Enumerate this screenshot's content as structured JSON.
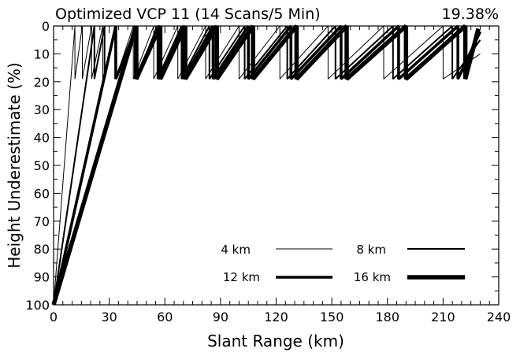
{
  "chart_data": {
    "type": "line",
    "title": "Optimized VCP 11 (14 Scans/5 Min)",
    "corner_label": "19.38%",
    "xlabel": "Slant Range (km)",
    "ylabel": "Height Underestimate (%)",
    "xlim": [
      0,
      240
    ],
    "ylim": [
      100,
      0
    ],
    "y_inverted": true,
    "xticks": [
      0,
      30,
      60,
      90,
      120,
      150,
      180,
      210,
      240
    ],
    "yticks": [
      0,
      10,
      20,
      30,
      40,
      50,
      60,
      70,
      80,
      90,
      100
    ],
    "grid": false,
    "legend_position": "bottom-right",
    "series": [
      {
        "name": "4 km",
        "x": [
          0,
          11.5,
          11.5,
          15.5,
          15.5,
          20.5,
          20.5,
          26.5,
          26.5,
          33.5,
          33.5,
          43,
          43,
          54,
          54,
          67,
          67,
          82,
          82,
          100,
          100,
          122,
          122,
          148,
          148,
          178,
          178,
          210,
          210,
          230
        ],
        "y": [
          100,
          0,
          19,
          0,
          19,
          0,
          19,
          0,
          19,
          0,
          19,
          0,
          19,
          0,
          19,
          0,
          19,
          0,
          19,
          0,
          19,
          0,
          19,
          0,
          19,
          0,
          19,
          0,
          19,
          10
        ]
      },
      {
        "name": "8 km",
        "x": [
          0,
          22,
          22,
          27.5,
          27.5,
          33.5,
          33.5,
          44.5,
          44.5,
          56,
          56,
          69,
          69,
          84,
          84,
          103,
          103,
          126,
          126,
          152,
          152,
          183,
          183,
          215,
          215,
          230
        ],
        "y": [
          100,
          0,
          19,
          0,
          19,
          0,
          19,
          0,
          19,
          0,
          19,
          0,
          19,
          0,
          19,
          0,
          19,
          0,
          19,
          0,
          19,
          0,
          19,
          0,
          19,
          5
        ]
      },
      {
        "name": "12 km",
        "x": [
          0,
          33.5,
          33.5,
          45,
          45,
          56.5,
          56.5,
          70,
          70,
          86,
          86,
          105,
          105,
          128,
          128,
          155,
          155,
          186,
          186,
          218,
          218,
          230
        ],
        "y": [
          100,
          0,
          19,
          0,
          19,
          0,
          19,
          0,
          19,
          0,
          19,
          0,
          19,
          0,
          19,
          0,
          19,
          0,
          19,
          0,
          19,
          2
        ]
      },
      {
        "name": "16 km",
        "x": [
          0,
          44.5,
          44.5,
          57.5,
          57.5,
          71,
          71,
          88,
          88,
          107.5,
          107.5,
          131,
          131,
          158,
          158,
          190,
          190,
          222,
          222,
          229
        ],
        "y": [
          100,
          0,
          19,
          0,
          19,
          0,
          19,
          0,
          19,
          0,
          19,
          0,
          19,
          0,
          19,
          0,
          19,
          0,
          19,
          1
        ]
      }
    ]
  },
  "styles": {
    "line_widths": {
      "4 km": "thin",
      "8 km": "medium",
      "12 km": "thick",
      "16 km": "extra-thick"
    },
    "color": "#000000"
  }
}
